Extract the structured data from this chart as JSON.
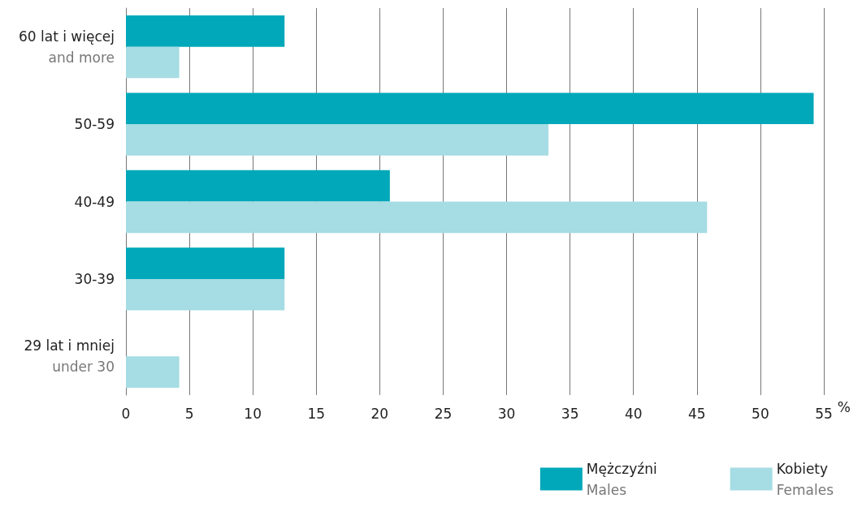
{
  "chart_data": {
    "type": "bar",
    "orientation": "horizontal",
    "categories": [
      "60 lat i więcej\nand more",
      "50-59",
      "40-49",
      "30-39",
      "29 lat i mniej\nunder 30"
    ],
    "series": [
      {
        "name": "Mężczyźni\nMales",
        "color": "#00a8b9",
        "values": [
          12.5,
          54.2,
          20.8,
          12.5,
          0
        ]
      },
      {
        "name": "Kobiety\nFemales",
        "color": "#a6dce3",
        "values": [
          4.2,
          33.3,
          45.8,
          12.5,
          4.2
        ]
      }
    ],
    "xlabel": "%",
    "xlim": [
      0,
      55
    ],
    "xticks": [
      0,
      5,
      10,
      15,
      20,
      25,
      30,
      35,
      40,
      45,
      50,
      55
    ],
    "grid": "x",
    "legend": "bottom right"
  }
}
